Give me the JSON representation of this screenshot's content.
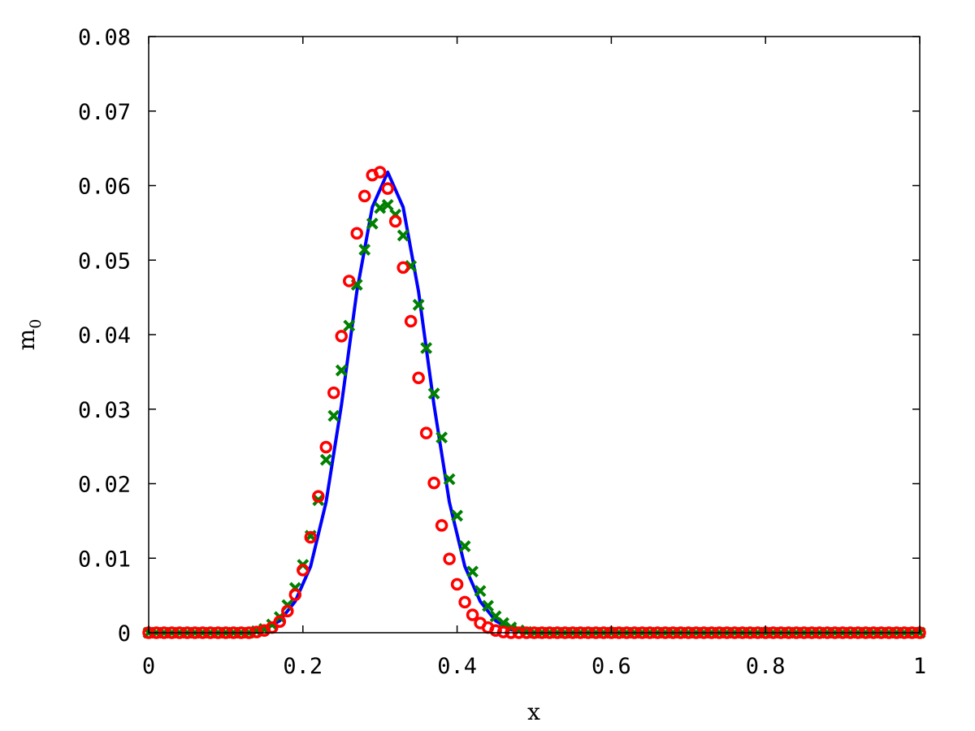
{
  "chart_data": {
    "type": "line",
    "title": "",
    "xlabel": "x",
    "ylabel": {
      "main": "m",
      "subscript": "0"
    },
    "xlim": [
      0,
      1
    ],
    "ylim": [
      0,
      0.08
    ],
    "x_ticks": [
      "0",
      "0.2",
      "0.4",
      "0.6",
      "0.8",
      "1"
    ],
    "y_ticks": [
      "0",
      "0.01",
      "0.02",
      "0.03",
      "0.04",
      "0.05",
      "0.06",
      "0.07",
      "0.08"
    ],
    "x_tick_values": [
      0,
      0.2,
      0.4,
      0.6,
      0.8,
      1.0
    ],
    "y_tick_values": [
      0,
      0.01,
      0.02,
      0.03,
      0.04,
      0.05,
      0.06,
      0.07,
      0.08
    ],
    "grid": false,
    "legend": "none",
    "series": [
      {
        "style": "line",
        "color": "#0000ff",
        "x": [
          0,
          0.1,
          0.13,
          0.15,
          0.17,
          0.19,
          0.21,
          0.23,
          0.25,
          0.27,
          0.29,
          0.31,
          0.33,
          0.35,
          0.37,
          0.39,
          0.41,
          0.43,
          0.45,
          0.47,
          0.5,
          0.6,
          1.0
        ],
        "y": [
          0,
          0,
          0.0001,
          0.0004,
          0.0016,
          0.0042,
          0.0089,
          0.0175,
          0.0306,
          0.0458,
          0.0571,
          0.0618,
          0.0571,
          0.0458,
          0.0306,
          0.0175,
          0.0089,
          0.0042,
          0.0016,
          0.0004,
          0,
          0,
          0
        ]
      },
      {
        "style": "markers-x",
        "color": "#008000",
        "x": [
          0,
          0.01,
          0.02,
          0.03,
          0.04,
          0.05,
          0.06,
          0.07,
          0.08,
          0.09,
          0.1,
          0.11,
          0.12,
          0.13,
          0.14,
          0.15,
          0.16,
          0.17,
          0.18,
          0.19,
          0.2,
          0.21,
          0.22,
          0.23,
          0.24,
          0.25,
          0.26,
          0.27,
          0.28,
          0.29,
          0.3,
          0.31,
          0.32,
          0.33,
          0.34,
          0.35,
          0.36,
          0.37,
          0.38,
          0.39,
          0.4,
          0.41,
          0.42,
          0.43,
          0.44,
          0.45,
          0.46,
          0.47,
          0.48,
          0.49,
          0.5,
          0.51,
          0.52,
          0.53,
          0.54,
          0.55,
          0.56,
          0.57,
          0.58,
          0.59,
          0.6,
          0.61,
          0.62,
          0.63,
          0.64,
          0.65,
          0.66,
          0.67,
          0.68,
          0.69,
          0.7,
          0.71,
          0.72,
          0.73,
          0.74,
          0.75,
          0.76,
          0.77,
          0.78,
          0.79,
          0.8,
          0.81,
          0.82,
          0.83,
          0.84,
          0.85,
          0.86,
          0.87,
          0.88,
          0.89,
          0.9,
          0.91,
          0.92,
          0.93,
          0.94,
          0.95,
          0.96,
          0.97,
          0.98,
          0.99,
          1.0
        ],
        "y": [
          0,
          0,
          0,
          0,
          0,
          0,
          0,
          0,
          0,
          0,
          0,
          0,
          0,
          0,
          0.0002,
          0.0005,
          0.0011,
          0.0021,
          0.0037,
          0.006,
          0.0091,
          0.013,
          0.0178,
          0.0232,
          0.0291,
          0.0352,
          0.0412,
          0.0467,
          0.0514,
          0.0549,
          0.057,
          0.0574,
          0.0561,
          0.0533,
          0.0492,
          0.044,
          0.0382,
          0.0321,
          0.0262,
          0.0206,
          0.0157,
          0.0116,
          0.0082,
          0.0056,
          0.0036,
          0.0022,
          0.0013,
          0.0007,
          0.0003,
          0.0001,
          0,
          0,
          0,
          0,
          0,
          0,
          0,
          0,
          0,
          0,
          0,
          0,
          0,
          0,
          0,
          0,
          0,
          0,
          0,
          0,
          0,
          0,
          0,
          0,
          0,
          0,
          0,
          0,
          0,
          0,
          0,
          0,
          0,
          0,
          0,
          0,
          0,
          0,
          0,
          0,
          0,
          0,
          0,
          0,
          0,
          0,
          0,
          0,
          0,
          0,
          0
        ]
      },
      {
        "style": "markers-o",
        "color": "#ff0000",
        "x": [
          0,
          0.01,
          0.02,
          0.03,
          0.04,
          0.05,
          0.06,
          0.07,
          0.08,
          0.09,
          0.1,
          0.11,
          0.12,
          0.13,
          0.14,
          0.15,
          0.16,
          0.17,
          0.18,
          0.19,
          0.2,
          0.21,
          0.22,
          0.23,
          0.24,
          0.25,
          0.26,
          0.27,
          0.28,
          0.29,
          0.3,
          0.31,
          0.32,
          0.33,
          0.34,
          0.35,
          0.36,
          0.37,
          0.38,
          0.39,
          0.4,
          0.41,
          0.42,
          0.43,
          0.44,
          0.45,
          0.46,
          0.47,
          0.48,
          0.49,
          0.5,
          0.51,
          0.52,
          0.53,
          0.54,
          0.55,
          0.56,
          0.57,
          0.58,
          0.59,
          0.6,
          0.61,
          0.62,
          0.63,
          0.64,
          0.65,
          0.66,
          0.67,
          0.68,
          0.69,
          0.7,
          0.71,
          0.72,
          0.73,
          0.74,
          0.75,
          0.76,
          0.77,
          0.78,
          0.79,
          0.8,
          0.81,
          0.82,
          0.83,
          0.84,
          0.85,
          0.86,
          0.87,
          0.88,
          0.89,
          0.9,
          0.91,
          0.92,
          0.93,
          0.94,
          0.95,
          0.96,
          0.97,
          0.98,
          0.99,
          1.0
        ],
        "y": [
          0,
          0,
          0,
          0,
          0,
          0,
          0,
          0,
          0,
          0,
          0,
          0,
          0,
          0,
          0.0001,
          0.0003,
          0.0007,
          0.0015,
          0.0029,
          0.0051,
          0.0084,
          0.0128,
          0.0183,
          0.0249,
          0.0322,
          0.0398,
          0.0472,
          0.0536,
          0.0586,
          0.0614,
          0.0618,
          0.0596,
          0.0552,
          0.049,
          0.0418,
          0.0342,
          0.0268,
          0.0201,
          0.0144,
          0.0099,
          0.0065,
          0.0041,
          0.0024,
          0.0013,
          0.0007,
          0.0003,
          0.0001,
          0,
          0,
          0,
          0,
          0,
          0,
          0,
          0,
          0,
          0,
          0,
          0,
          0,
          0,
          0,
          0,
          0,
          0,
          0,
          0,
          0,
          0,
          0,
          0,
          0,
          0,
          0,
          0,
          0,
          0,
          0,
          0,
          0,
          0,
          0,
          0,
          0,
          0,
          0,
          0,
          0,
          0,
          0,
          0,
          0,
          0,
          0,
          0,
          0,
          0,
          0,
          0,
          0,
          0
        ]
      }
    ]
  }
}
